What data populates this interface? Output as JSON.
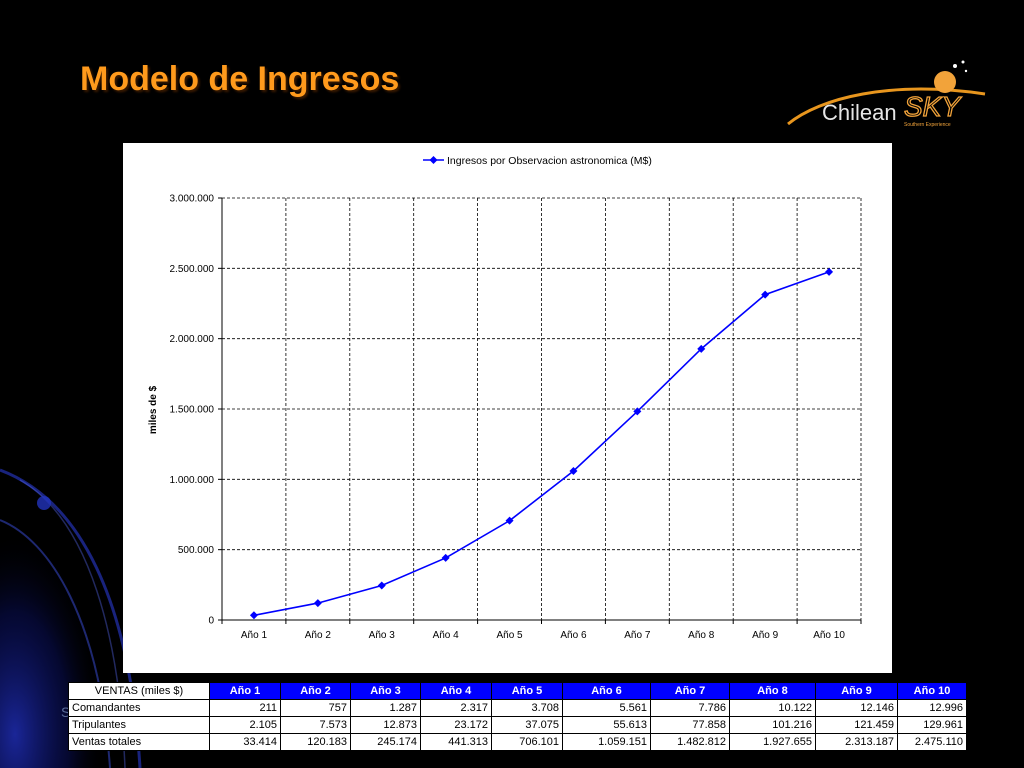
{
  "slide": {
    "title": "Modelo de Ingresos",
    "stray_text": "S"
  },
  "logo": {
    "brand_left": "Chilean",
    "brand_right": "SKY",
    "tagline": "Southern Experience"
  },
  "chart_data": {
    "type": "line",
    "title": "",
    "xlabel": "",
    "ylabel": "miles de $",
    "categories": [
      "Año 1",
      "Año 2",
      "Año 3",
      "Año 4",
      "Año 5",
      "Año 6",
      "Año 7",
      "Año 8",
      "Año 9",
      "Año 10"
    ],
    "series": [
      {
        "name": "Ingresos por Observacion astronomica (M$)",
        "color": "#0000ff",
        "values": [
          33414,
          120183,
          245174,
          441313,
          706101,
          1059151,
          1482812,
          1927655,
          2313187,
          2475110
        ]
      }
    ],
    "ylim": [
      0,
      3000000
    ],
    "yticks": [
      0,
      500000,
      1000000,
      1500000,
      2000000,
      2500000,
      3000000
    ],
    "ytick_labels": [
      "0",
      "500.000",
      "1.000.000",
      "1.500.000",
      "2.000.000",
      "2.500.000",
      "3.000.000"
    ],
    "grid": true,
    "legend_position": "top"
  },
  "table": {
    "corner": "VENTAS (miles $)",
    "headers": [
      "Año 1",
      "Año 2",
      "Año 3",
      "Año 4",
      "Año 5",
      "Año 6",
      "Año 7",
      "Año 8",
      "Año 9",
      "Año 10"
    ],
    "rows": [
      {
        "label": "Comandantes",
        "values": [
          "211",
          "757",
          "1.287",
          "2.317",
          "3.708",
          "5.561",
          "7.786",
          "10.122",
          "12.146",
          "12.996"
        ]
      },
      {
        "label": "Tripulantes",
        "values": [
          "2.105",
          "7.573",
          "12.873",
          "23.172",
          "37.075",
          "55.613",
          "77.858",
          "101.216",
          "121.459",
          "129.961"
        ]
      },
      {
        "label": "Ventas totales",
        "values": [
          "33.414",
          "120.183",
          "245.174",
          "441.313",
          "706.101",
          "1.059.151",
          "1.482.812",
          "1.927.655",
          "2.313.187",
          "2.475.110"
        ]
      }
    ]
  }
}
